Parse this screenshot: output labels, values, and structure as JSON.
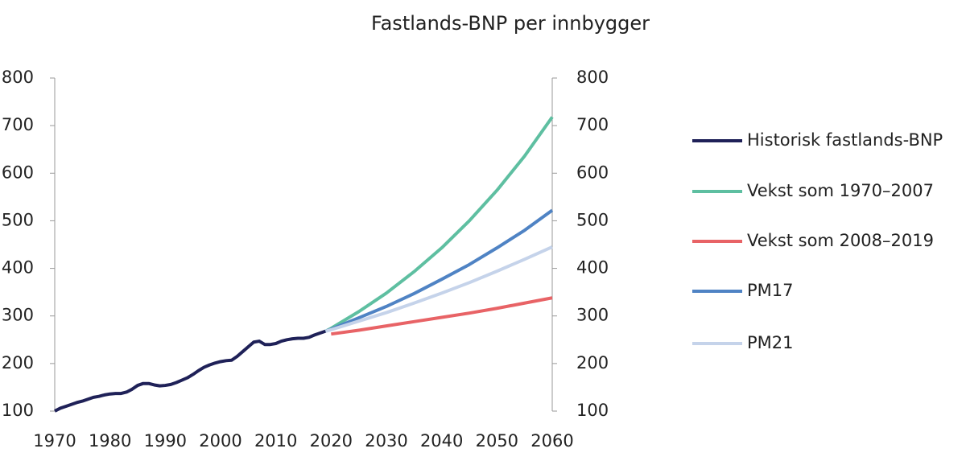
{
  "chart_data": {
    "type": "line",
    "title": "Fastlands-BNP per innbygger",
    "x": [
      1970,
      1971,
      1972,
      1973,
      1974,
      1975,
      1976,
      1977,
      1978,
      1979,
      1980,
      1981,
      1982,
      1983,
      1984,
      1985,
      1986,
      1987,
      1988,
      1989,
      1990,
      1991,
      1992,
      1993,
      1994,
      1995,
      1996,
      1997,
      1998,
      1999,
      2000,
      2001,
      2002,
      2003,
      2004,
      2005,
      2006,
      2007,
      2008,
      2009,
      2010,
      2011,
      2012,
      2013,
      2014,
      2015,
      2016,
      2017,
      2018,
      2019,
      2020,
      2025,
      2030,
      2035,
      2040,
      2045,
      2050,
      2055,
      2060
    ],
    "series": [
      {
        "name": "Historisk fastlands-BNP",
        "color": "#1f2158",
        "values": [
          100,
          106,
          110,
          114,
          118,
          121,
          125,
          129,
          131,
          134,
          136,
          137,
          137,
          140,
          146,
          154,
          158,
          158,
          155,
          153,
          154,
          156,
          160,
          165,
          170,
          177,
          185,
          192,
          197,
          201,
          204,
          206,
          207,
          215,
          225,
          235,
          245,
          247,
          240,
          240,
          242,
          247,
          250,
          252,
          253,
          253,
          255,
          260,
          264,
          268,
          null,
          null,
          null,
          null,
          null,
          null,
          null,
          null,
          null
        ]
      },
      {
        "name": "Vekst som 1970–2007",
        "color": "#5ebfa1",
        "values": [
          null,
          null,
          null,
          null,
          null,
          null,
          null,
          null,
          null,
          null,
          null,
          null,
          null,
          null,
          null,
          null,
          null,
          null,
          null,
          null,
          null,
          null,
          null,
          null,
          null,
          null,
          null,
          null,
          null,
          null,
          null,
          null,
          null,
          null,
          null,
          null,
          null,
          null,
          null,
          null,
          null,
          null,
          null,
          null,
          null,
          null,
          null,
          null,
          null,
          268,
          274,
          309,
          348,
          393,
          443,
          500,
          564,
          636,
          718
        ]
      },
      {
        "name": "Vekst som 2008–2019",
        "color": "#e86366",
        "values": [
          null,
          null,
          null,
          null,
          null,
          null,
          null,
          null,
          null,
          null,
          null,
          null,
          null,
          null,
          null,
          null,
          null,
          null,
          null,
          null,
          null,
          null,
          null,
          null,
          null,
          null,
          null,
          null,
          null,
          null,
          null,
          null,
          null,
          null,
          null,
          null,
          null,
          null,
          null,
          null,
          null,
          null,
          null,
          null,
          null,
          null,
          null,
          null,
          null,
          null,
          262,
          270,
          279,
          288,
          297,
          306,
          316,
          327,
          338
        ]
      },
      {
        "name": "PM17",
        "color": "#4f83c4",
        "values": [
          null,
          null,
          null,
          null,
          null,
          null,
          null,
          null,
          null,
          null,
          null,
          null,
          null,
          null,
          null,
          null,
          null,
          null,
          null,
          null,
          null,
          null,
          null,
          null,
          null,
          null,
          null,
          null,
          null,
          null,
          null,
          null,
          null,
          null,
          null,
          null,
          null,
          null,
          null,
          null,
          null,
          null,
          null,
          null,
          null,
          null,
          null,
          null,
          null,
          268,
          272,
          296,
          320,
          347,
          377,
          408,
          443,
          480,
          522
        ]
      },
      {
        "name": "PM21",
        "color": "#c5d3ea",
        "values": [
          null,
          null,
          null,
          null,
          null,
          null,
          null,
          null,
          null,
          null,
          null,
          null,
          null,
          null,
          null,
          null,
          null,
          null,
          null,
          null,
          null,
          null,
          null,
          null,
          null,
          null,
          null,
          null,
          null,
          null,
          null,
          null,
          null,
          null,
          null,
          null,
          null,
          null,
          null,
          null,
          null,
          null,
          null,
          null,
          null,
          null,
          null,
          null,
          null,
          268,
          271,
          289,
          307,
          327,
          348,
          370,
          394,
          419,
          445
        ]
      }
    ],
    "xlim": [
      1970,
      2060
    ],
    "xticks": [
      1970,
      1980,
      1990,
      2000,
      2010,
      2020,
      2030,
      2040,
      2050,
      2060
    ],
    "ylim": [
      100,
      800
    ],
    "yticks": [
      100,
      200,
      300,
      400,
      500,
      600,
      700,
      800
    ],
    "y2lim": [
      100,
      800
    ],
    "y2ticks": [
      100,
      200,
      300,
      400,
      500,
      600,
      700,
      800
    ],
    "legend": "right"
  }
}
